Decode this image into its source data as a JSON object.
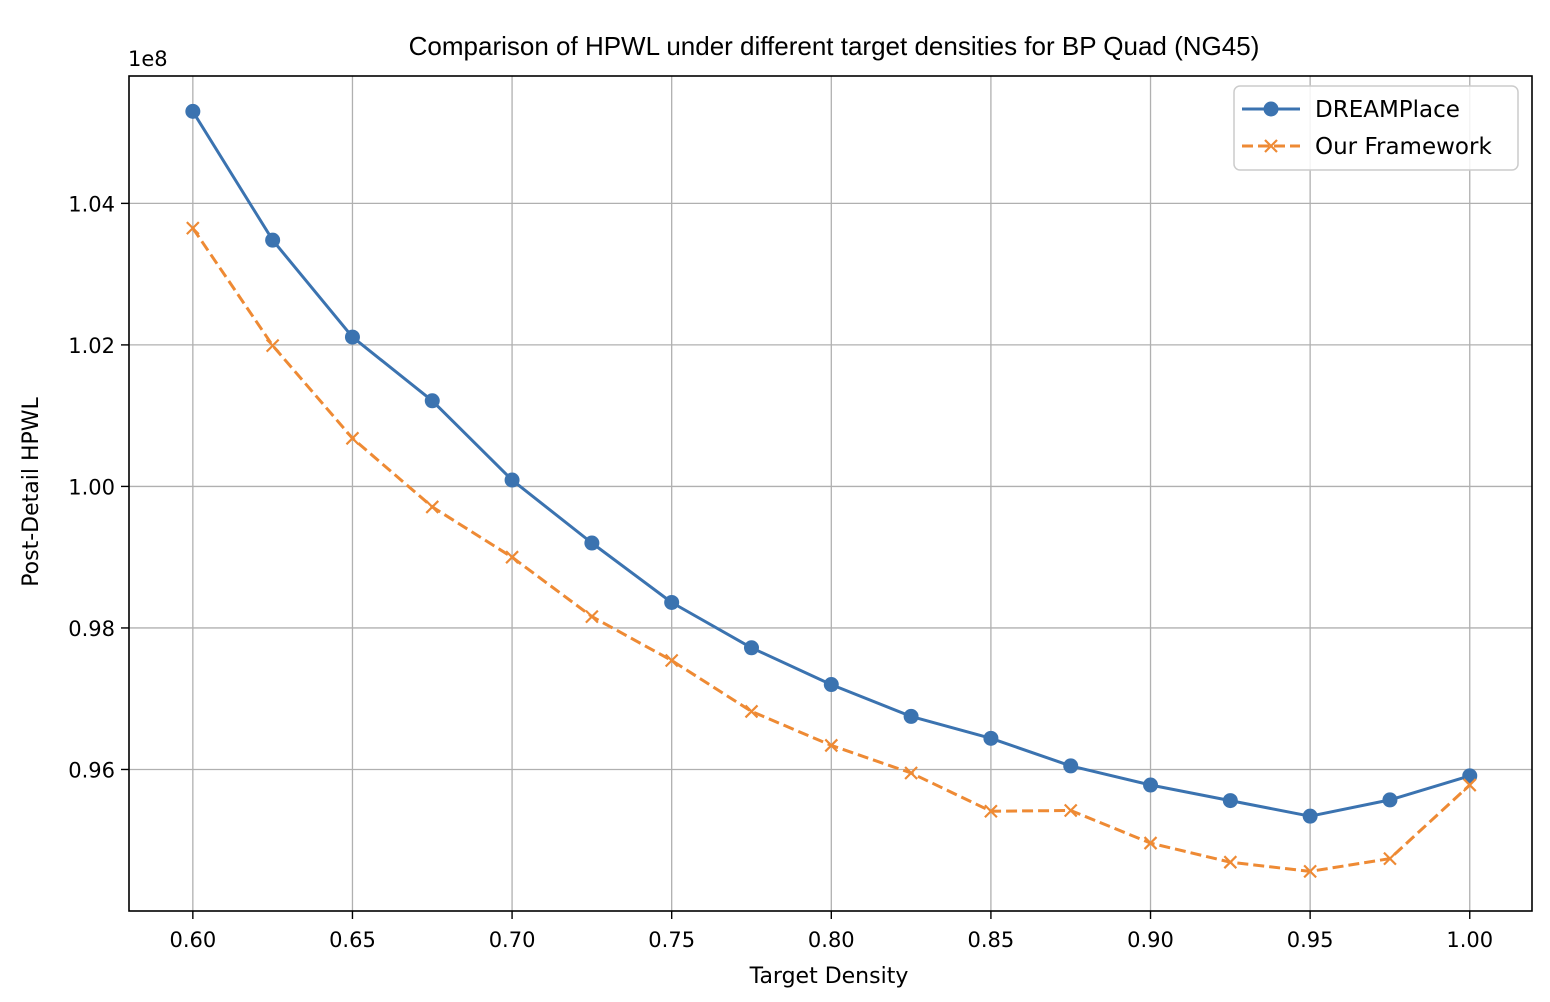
{
  "chart_data": {
    "type": "line",
    "title": "Comparison of HPWL under different target densities for BP Quad (NG45)",
    "xlabel": "Target Density",
    "ylabel": "Post-Detail HPWL",
    "y_offset_text": "1e8",
    "xlim": [
      0.58,
      1.0195
    ],
    "ylim": [
      0.94,
      1.058
    ],
    "x_ticks": [
      0.6,
      0.65,
      0.7,
      0.75,
      0.8,
      0.85,
      0.9,
      0.95,
      1.0
    ],
    "x_tick_labels": [
      "0.60",
      "0.65",
      "0.70",
      "0.75",
      "0.80",
      "0.85",
      "0.90",
      "0.95",
      "1.00"
    ],
    "y_ticks": [
      0.96,
      0.98,
      1.0,
      1.02,
      1.04
    ],
    "y_tick_labels": [
      "0.96",
      "0.98",
      "1.00",
      "1.02",
      "1.04"
    ],
    "grid": true,
    "legend_position": "top-right",
    "x": [
      0.6,
      0.625,
      0.65,
      0.675,
      0.7,
      0.725,
      0.75,
      0.775,
      0.8,
      0.825,
      0.85,
      0.875,
      0.9,
      0.925,
      0.95,
      0.975,
      1.0
    ],
    "series": [
      {
        "name": "DREAMPlace",
        "color": "#3b73b0",
        "line_style": "solid",
        "marker": "circle",
        "values": [
          1.053,
          1.0348,
          1.0211,
          1.0121,
          1.0009,
          0.992,
          0.9836,
          0.9772,
          0.972,
          0.9675,
          0.9644,
          0.9605,
          0.9578,
          0.9556,
          0.9534,
          0.9557,
          0.9591
        ]
      },
      {
        "name": "Our Framework",
        "color": "#ee8a34",
        "line_style": "dashed",
        "marker": "x",
        "values": [
          1.0365,
          1.0199,
          1.0068,
          0.9971,
          0.99,
          0.9816,
          0.9754,
          0.9682,
          0.9634,
          0.9595,
          0.9541,
          0.9542,
          0.9496,
          0.9469,
          0.9456,
          0.9474,
          0.9578
        ]
      }
    ]
  }
}
